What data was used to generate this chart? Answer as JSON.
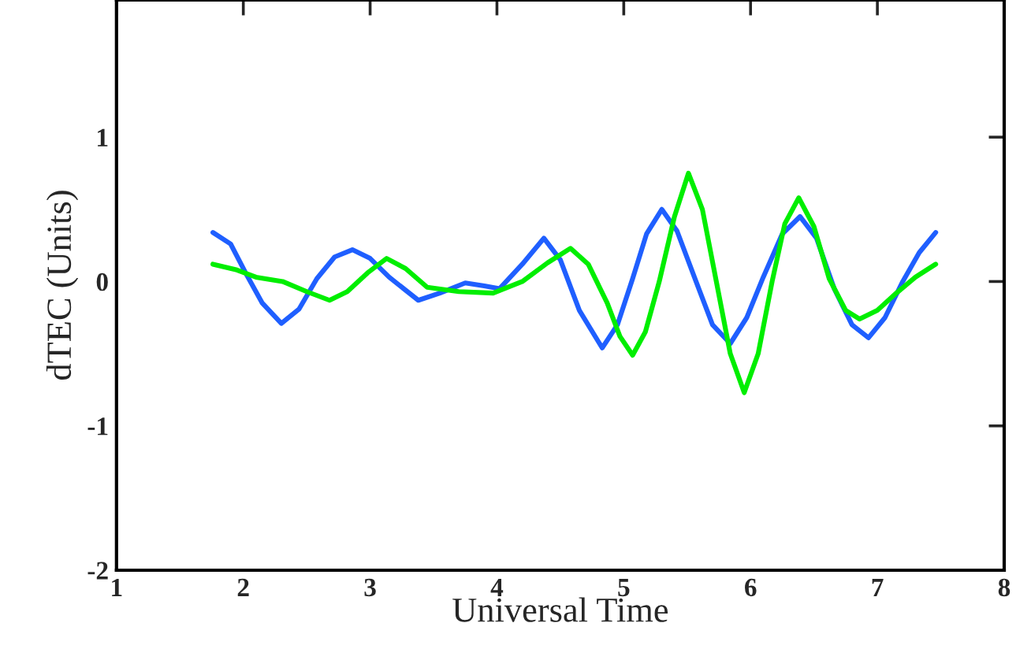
{
  "chart_data": {
    "type": "line",
    "xlabel": "Universal Time",
    "ylabel": "dTEC (Units)",
    "xlim": [
      1,
      8
    ],
    "xticks": [
      1,
      2,
      3,
      4,
      5,
      6,
      7,
      8
    ],
    "ylim": [
      -2,
      1.95
    ],
    "yticks": [
      -2,
      -1,
      0,
      1
    ],
    "grid": false,
    "legend": false,
    "marker": "none",
    "line_style": "solid",
    "series": [
      {
        "color": "#1f5fff",
        "x": [
          1.76,
          1.9,
          2.03,
          2.15,
          2.3,
          2.44,
          2.58,
          2.72,
          2.86,
          3.0,
          3.15,
          3.38,
          3.55,
          3.75,
          3.9,
          4.02,
          4.2,
          4.37,
          4.5,
          4.65,
          4.83,
          4.95,
          5.07,
          5.18,
          5.3,
          5.42,
          5.57,
          5.7,
          5.84,
          5.97,
          6.1,
          6.25,
          6.39,
          6.52,
          6.66,
          6.8,
          6.93,
          7.06,
          7.2,
          7.33,
          7.46
        ],
        "values": [
          0.34,
          0.26,
          0.04,
          -0.15,
          -0.29,
          -0.19,
          0.02,
          0.17,
          0.22,
          0.16,
          0.03,
          -0.13,
          -0.08,
          -0.01,
          -0.03,
          -0.05,
          0.12,
          0.3,
          0.15,
          -0.2,
          -0.46,
          -0.3,
          0.02,
          0.33,
          0.5,
          0.35,
          0.0,
          -0.3,
          -0.43,
          -0.25,
          0.03,
          0.33,
          0.45,
          0.3,
          -0.05,
          -0.3,
          -0.39,
          -0.25,
          0.0,
          0.2,
          0.34
        ]
      },
      {
        "color": "#00ee00",
        "x": [
          1.76,
          1.95,
          2.1,
          2.31,
          2.5,
          2.68,
          2.82,
          2.98,
          3.13,
          3.28,
          3.45,
          3.7,
          3.97,
          4.2,
          4.4,
          4.58,
          4.72,
          4.87,
          4.97,
          5.07,
          5.17,
          5.28,
          5.4,
          5.51,
          5.62,
          5.73,
          5.84,
          5.95,
          6.06,
          6.17,
          6.27,
          6.38,
          6.5,
          6.62,
          6.75,
          6.86,
          7.0,
          7.15,
          7.3,
          7.46
        ],
        "values": [
          0.12,
          0.08,
          0.03,
          0.0,
          -0.07,
          -0.13,
          -0.07,
          0.06,
          0.16,
          0.09,
          -0.04,
          -0.07,
          -0.08,
          0.0,
          0.13,
          0.23,
          0.12,
          -0.15,
          -0.38,
          -0.51,
          -0.35,
          0.0,
          0.45,
          0.75,
          0.5,
          0.0,
          -0.5,
          -0.77,
          -0.5,
          0.0,
          0.4,
          0.58,
          0.38,
          0.02,
          -0.2,
          -0.26,
          -0.2,
          -0.08,
          0.03,
          0.12
        ]
      }
    ]
  }
}
